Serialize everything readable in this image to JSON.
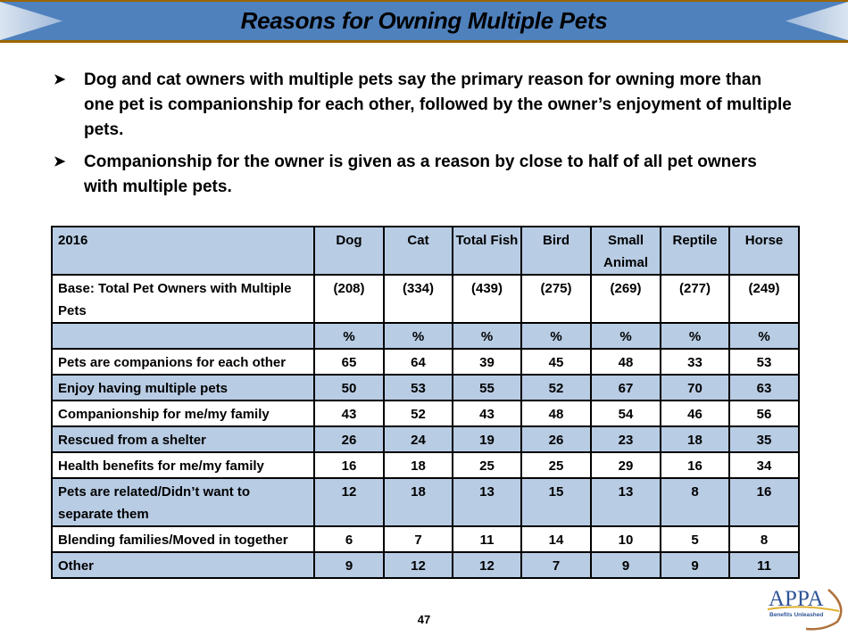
{
  "title": "Reasons for Owning Multiple Pets",
  "bullets": [
    "Dog and cat owners with multiple pets say the primary reason for owning more than one pet is companionship for each other, followed by the owner’s enjoyment of multiple pets.",
    "Companionship for the owner is given as a reason by close to half of all pet owners with multiple pets."
  ],
  "table": {
    "header": [
      "2016",
      "Dog",
      "Cat",
      "Total Fish",
      "Bird",
      "Small Animal",
      "Reptile",
      "Horse"
    ],
    "base": {
      "label": "Base: Total Pet Owners with Multiple Pets",
      "values": [
        "(208)",
        "(334)",
        "(439)",
        "(275)",
        "(269)",
        "(277)",
        "(249)"
      ]
    },
    "unit_row": [
      "%",
      "%",
      "%",
      "%",
      "%",
      "%",
      "%"
    ],
    "rows": [
      {
        "label": "Pets are companions for each other",
        "values": [
          "65",
          "64",
          "39",
          "45",
          "48",
          "33",
          "53"
        ]
      },
      {
        "label": "Enjoy having multiple pets",
        "values": [
          "50",
          "53",
          "55",
          "52",
          "67",
          "70",
          "63"
        ]
      },
      {
        "label": "Companionship for me/my family",
        "values": [
          "43",
          "52",
          "43",
          "48",
          "54",
          "46",
          "56"
        ]
      },
      {
        "label": "Rescued from a shelter",
        "values": [
          "26",
          "24",
          "19",
          "26",
          "23",
          "18",
          "35"
        ]
      },
      {
        "label": "Health benefits for me/my family",
        "values": [
          "16",
          "18",
          "25",
          "25",
          "29",
          "16",
          "34"
        ]
      },
      {
        "label": "Pets are related/Didn’t want to separate them",
        "values": [
          "12",
          "18",
          "13",
          "15",
          "13",
          "8",
          "16"
        ]
      },
      {
        "label": "Blending families/Moved in together",
        "values": [
          "6",
          "7",
          "11",
          "14",
          "10",
          "5",
          "8"
        ]
      },
      {
        "label": "Other",
        "values": [
          "9",
          "12",
          "12",
          "7",
          "9",
          "9",
          "11"
        ]
      }
    ]
  },
  "page_number": "47",
  "logo": {
    "text": "APPA",
    "tagline": "Benefits Unleashed"
  },
  "colors": {
    "banner": "#4f81bd",
    "banner_border": "#9c6500",
    "row_shade": "#b8cce4"
  }
}
